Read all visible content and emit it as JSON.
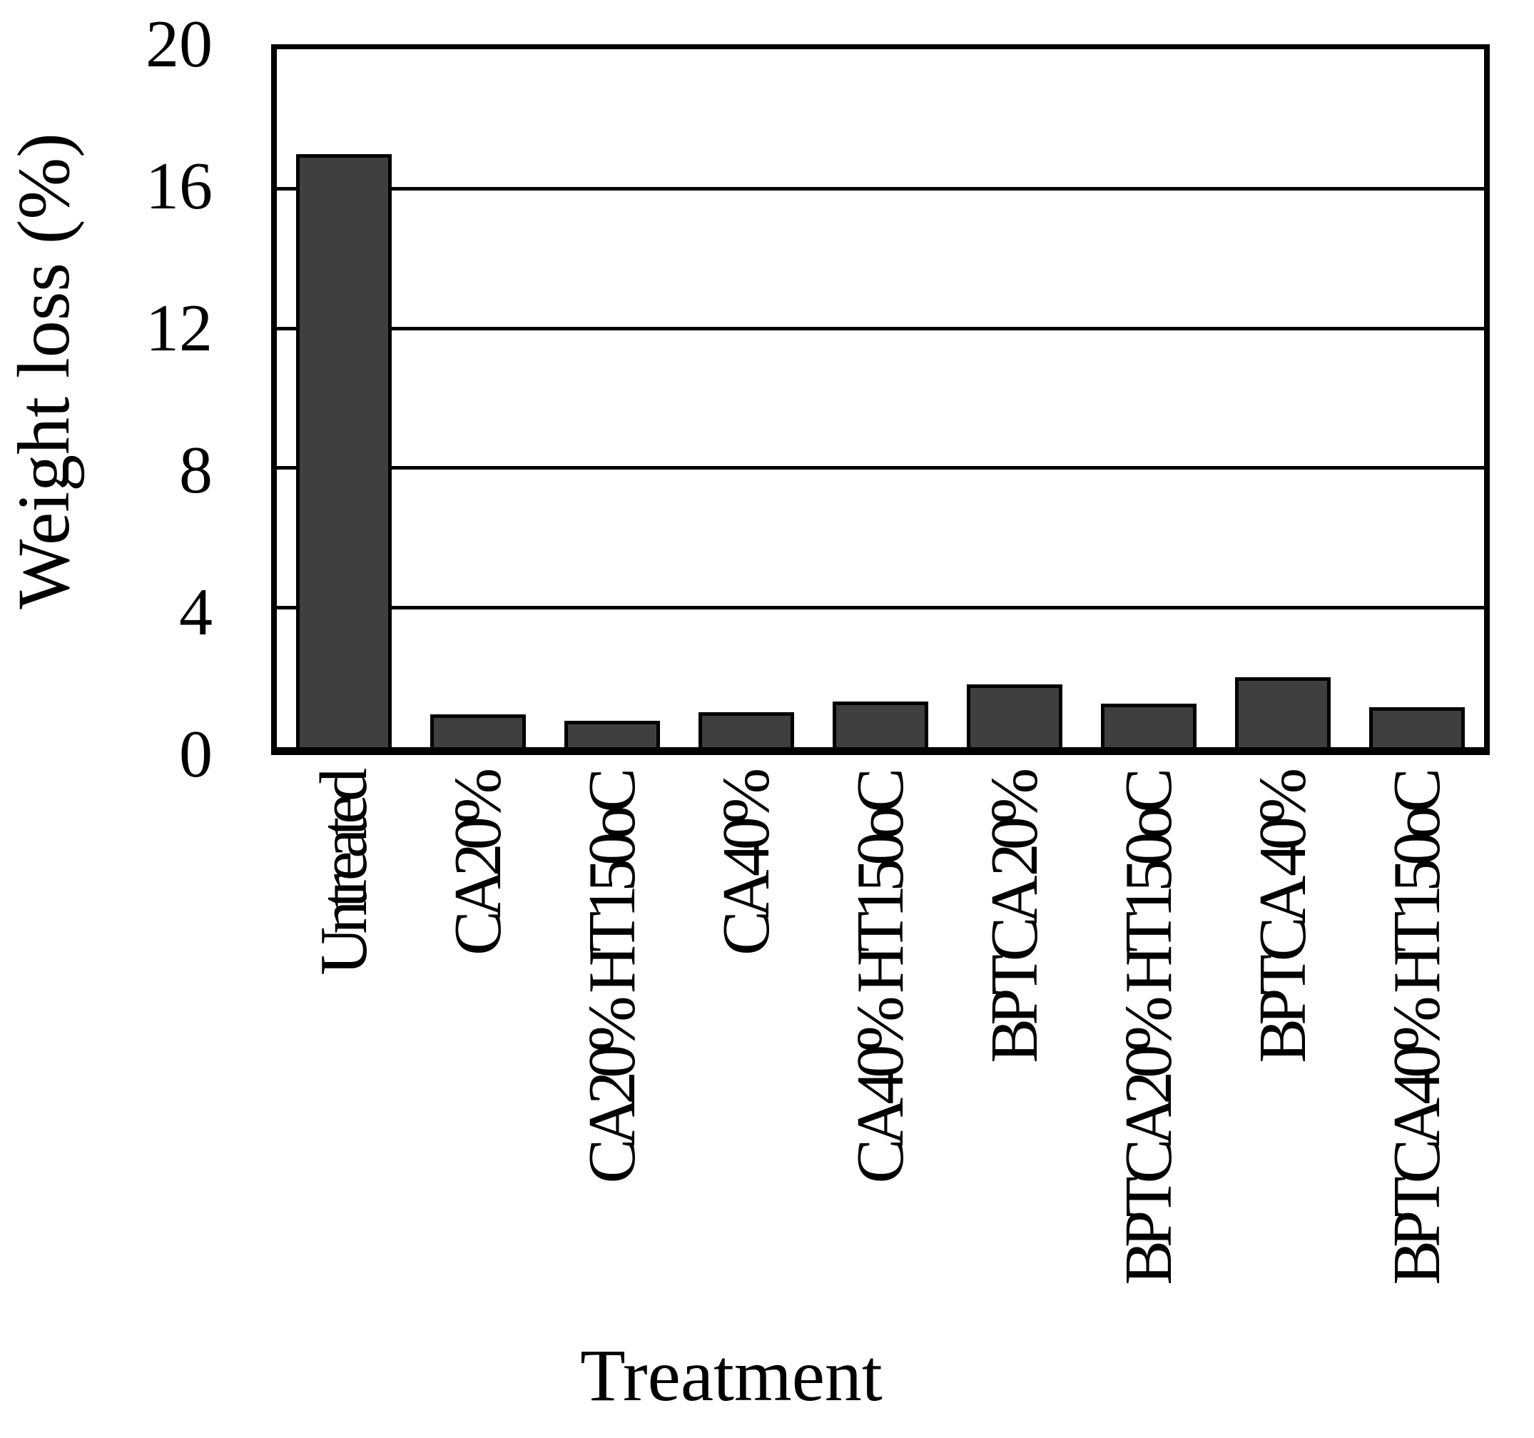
{
  "chart_data": {
    "type": "bar",
    "title": "",
    "categories": [
      "Untreated",
      "CA20%",
      "CA20% HT150oC",
      "CA40%",
      "CA40% HT150oC",
      "BPTCA 20%",
      "BPTCA20% HT150oC",
      "BPTCA 40%",
      "BPTCA40% HT150oC"
    ],
    "values": [
      17.0,
      0.95,
      0.75,
      1.0,
      1.3,
      1.8,
      1.25,
      2.0,
      1.15
    ],
    "xlabel": "Treatment",
    "ylabel": "Weight loss (%)",
    "ylim": [
      0,
      20
    ],
    "yticks": [
      20,
      16,
      12,
      8,
      4,
      0
    ],
    "grid": "horizontal",
    "legend_position": "none",
    "bar_color": "#3F3F3F",
    "bar_border_color": "#000000",
    "axis_color": "#000000",
    "background_color": "#FFFFFF"
  }
}
